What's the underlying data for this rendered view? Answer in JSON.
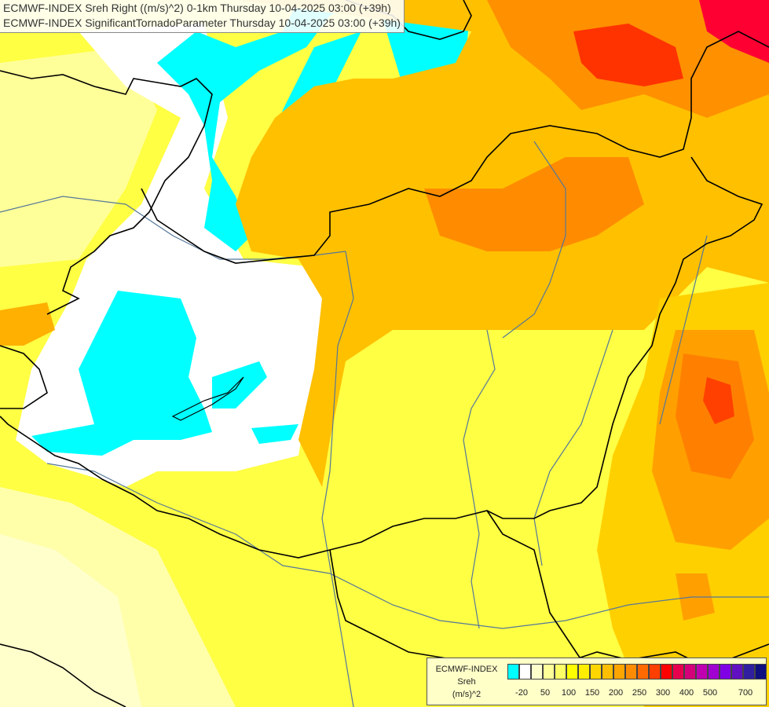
{
  "title": {
    "line1": "ECMWF-INDEX Sreh Right ((m/s)^2) 0-1km Thursday 10-04-2025 03:00 (+39h)",
    "line2": "ECMWF-INDEX SignificantTornadoParameter Thursday 10-04-2025 03:00 (+39h)"
  },
  "legend": {
    "line1": "ECMWF-INDEX",
    "line2": "Sreh",
    "line3": "(m/s)^2",
    "swatches": [
      "#00ffff",
      "#ffffff",
      "#ffffcc",
      "#ffff99",
      "#ffff66",
      "#ffff00",
      "#ffee00",
      "#ffd700",
      "#ffbf00",
      "#ffa500",
      "#ff8c00",
      "#ff6a00",
      "#ff3f00",
      "#ff0000",
      "#e6004d",
      "#d4007a",
      "#c000b0",
      "#a000d0",
      "#8000e6",
      "#6010c0",
      "#3020a0",
      "#101080"
    ],
    "ticks": [
      "-20",
      "50",
      "100",
      "150",
      "200",
      "250",
      "300",
      "400",
      "500",
      "700"
    ]
  },
  "colors": {
    "cyan": "#00ffff",
    "white": "#ffffff",
    "pale": "#ffffcc",
    "lightyellow": "#ffff99",
    "yellow": "#ffff33",
    "gold": "#ffdd00",
    "orange": "#ffbb00",
    "darkorange": "#ff8c00",
    "red": "#ff3300"
  }
}
